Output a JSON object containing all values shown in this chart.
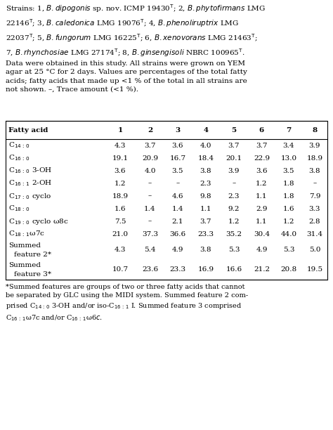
{
  "header": [
    "Fatty acid",
    "1",
    "2",
    "3",
    "4",
    "5",
    "6",
    "7",
    "8"
  ],
  "rows": [
    {
      "label": "C$_{14\\,:\\,0}$",
      "values": [
        "4.3",
        "3.7",
        "3.6",
        "4.0",
        "3.7",
        "3.7",
        "3.4",
        "3.9"
      ]
    },
    {
      "label": "C$_{16\\,:\\,0}$",
      "values": [
        "19.1",
        "20.9",
        "16.7",
        "18.4",
        "20.1",
        "22.9",
        "13.0",
        "18.9"
      ]
    },
    {
      "label": "C$_{16\\,:\\,0}$ 3-OH",
      "values": [
        "3.6",
        "4.0",
        "3.5",
        "3.8",
        "3.9",
        "3.6",
        "3.5",
        "3.8"
      ]
    },
    {
      "label": "C$_{16\\,:\\,1}$ 2-OH",
      "values": [
        "1.2",
        "–",
        "–",
        "2.3",
        "–",
        "1.2",
        "1.8",
        "–"
      ]
    },
    {
      "label": "C$_{17\\,:\\,0}$ cyclo",
      "values": [
        "18.9",
        "–",
        "4.6",
        "9.8",
        "2.3",
        "1.1",
        "1.8",
        "7.9"
      ]
    },
    {
      "label": "C$_{18\\,:\\,0}$",
      "values": [
        "1.6",
        "1.4",
        "1.4",
        "1.1",
        "9.2",
        "2.9",
        "1.6",
        "3.3"
      ]
    },
    {
      "label": "C$_{19\\,:\\,0}$ cyclo ω8c",
      "values": [
        "7.5",
        "–",
        "2.1",
        "3.7",
        "1.2",
        "1.1",
        "1.2",
        "2.8"
      ]
    },
    {
      "label": "C$_{18\\,:\\,1}$ω7c",
      "values": [
        "21.0",
        "37.3",
        "36.6",
        "23.3",
        "35.2",
        "30.4",
        "44.0",
        "31.4"
      ]
    },
    {
      "label": "Summed\nfeature 2*",
      "values": [
        "4.3",
        "5.4",
        "4.9",
        "3.8",
        "5.3",
        "4.9",
        "5.3",
        "5.0"
      ]
    },
    {
      "label": "Summed\nfeature 3*",
      "values": [
        "10.7",
        "23.6",
        "23.3",
        "16.9",
        "16.6",
        "21.2",
        "20.8",
        "19.5"
      ]
    }
  ],
  "header_text": "Strains: 1, B. dipogonis sp. nov. ICMP 19430T; 2, B. phytofirmans LMG 22146T; 3, B. caledonica LMG 19076T; 4, B. phenoliruptrix LMG 22037T; 5, B. fungorum LMG 16225T; 6, B. xenovorans LMG 21463T; 7, B. rhynchosiae LMG 27174T; 8, B. ginsengisoli NBRC 100965T. Data were obtained in this study. All strains were grown on YEM agar at 25 °C for 2 days. Values are percentages of the total fatty acids; fatty acids that made up <1 % of the total in all strains are not shown. –, Trace amount (<1 %).",
  "footer_text": "*Summed features are groups of two or three fatty acids that cannot be separated by GLC using the MIDI system. Summed feature 2 comprised C14 : 0 3-OH and/or iso-C16 : 1 I. Summed feature 3 comprised C16 : 1ω7c and/or C16 : 1ω6c.",
  "bg_color": "#ffffff",
  "table_line_color": "#000000",
  "text_color": "#000000"
}
